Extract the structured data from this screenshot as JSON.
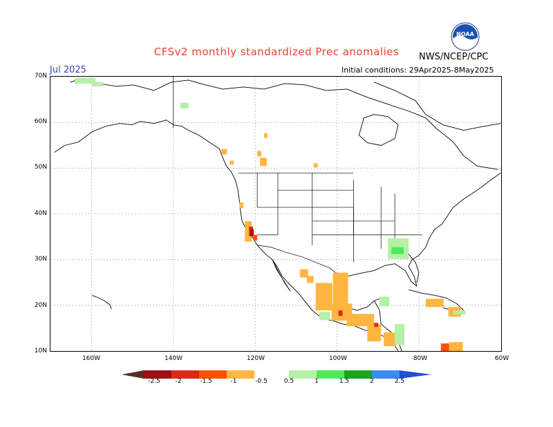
{
  "header": {
    "title": "CFSv2 monthly standardized Prec anomalies",
    "agency": "NWS/NCEP/CPC",
    "month": "Jul 2025",
    "initial_conditions": "Initial conditions: 29Apr2025-8May2025"
  },
  "logo": {
    "text": "NOAA",
    "icon": "noaa-logo-icon"
  },
  "axes": {
    "lat_labels": [
      "70N",
      "60N",
      "50N",
      "40N",
      "30N",
      "20N",
      "10N"
    ],
    "lon_labels": [
      "160W",
      "140W",
      "120W",
      "100W",
      "80W",
      "60W"
    ]
  },
  "colorbar": {
    "labels": [
      "-2.5",
      "-2",
      "-1.5",
      "-1",
      "-0.5",
      "0.5",
      "1",
      "1.5",
      "2",
      "2.5"
    ],
    "colors": {
      "extreme_dry": "#5a2e26",
      "dry_2": "#a01010",
      "dry_15": "#dc2a1a",
      "dry_1": "#ff5000",
      "dry_05": "#ffb640",
      "wet_05": "#b4f0a6",
      "wet_1": "#50e85a",
      "wet_15": "#1aa41e",
      "wet_2": "#3c8cf0",
      "extreme_wet": "#1e50d2"
    }
  },
  "map": {
    "lat_range": [
      10,
      70
    ],
    "lon_range": [
      -170,
      -60
    ],
    "gridlines": "dotted"
  }
}
